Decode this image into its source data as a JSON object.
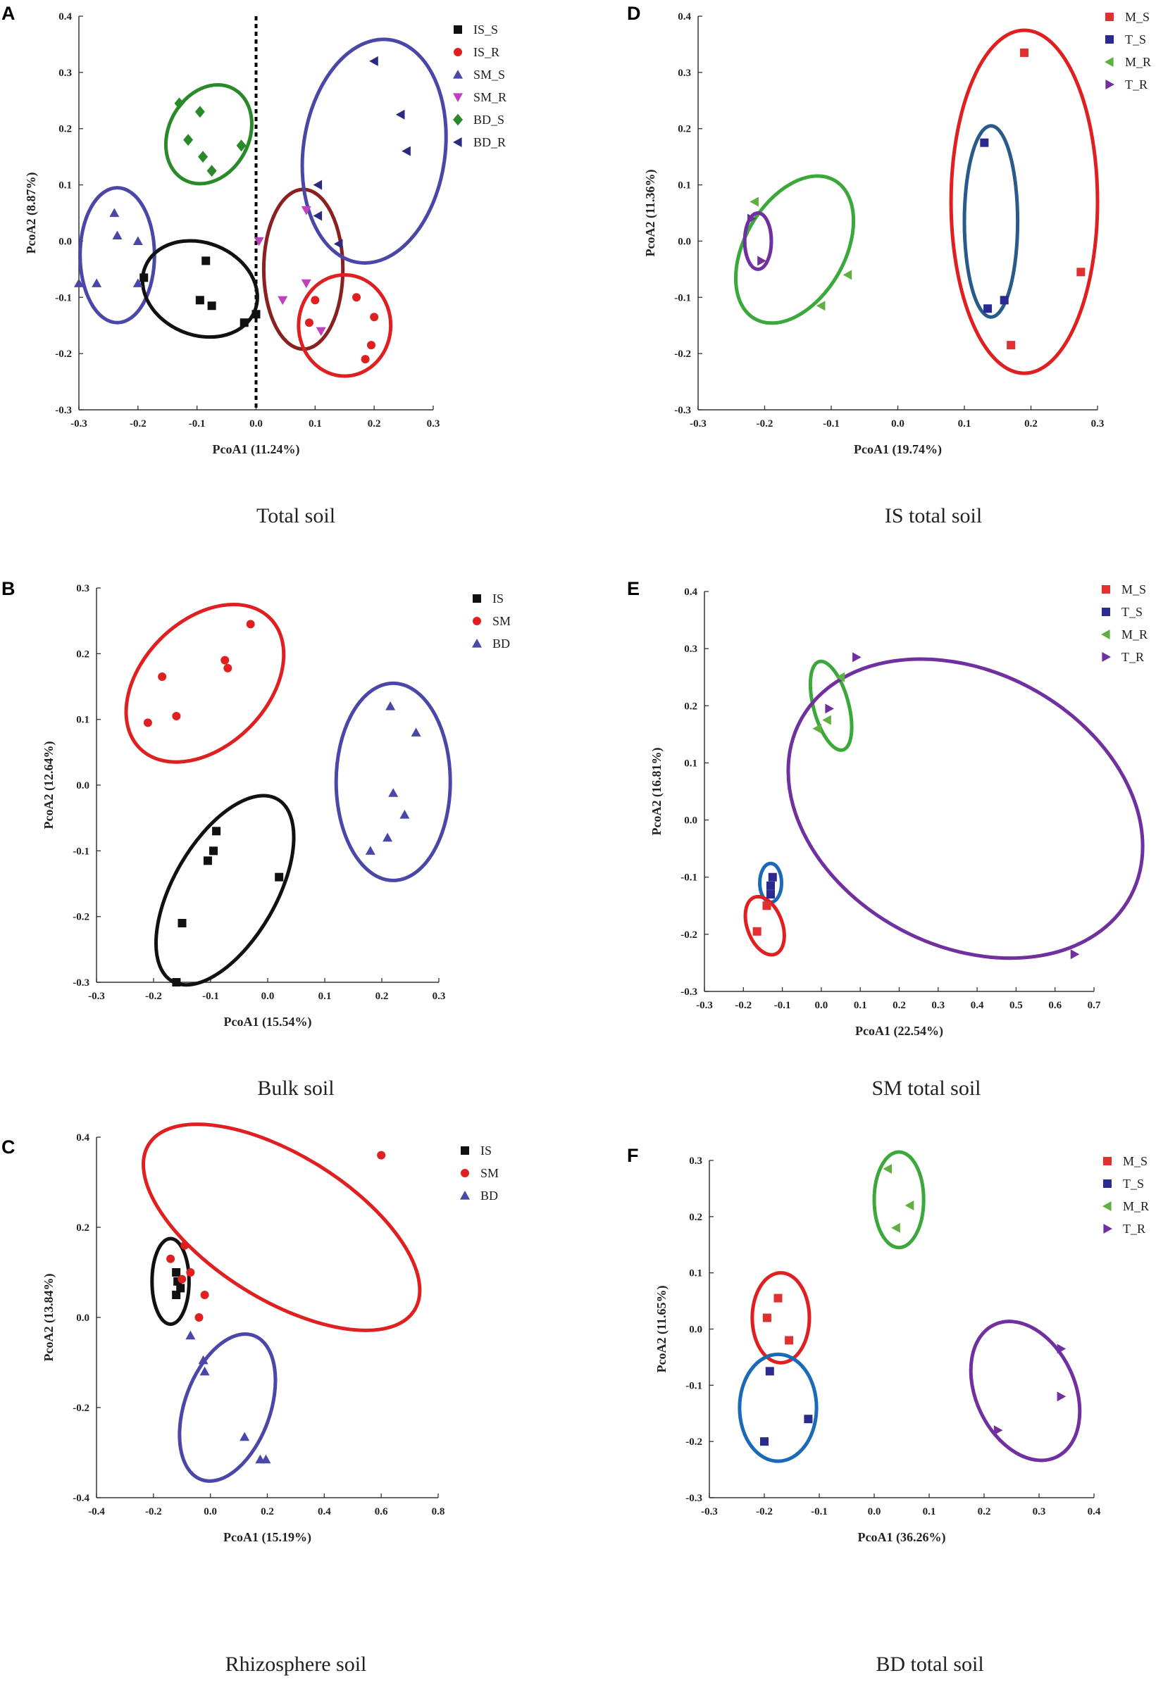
{
  "colors": {
    "IS_S": "#111111",
    "IS_R": "#e02020",
    "SM_S": "#4a47a8",
    "SM_R": "#c040c0",
    "BD_S": "#2a8a2a",
    "BD_R": "#2a2a80",
    "IS": "#111111",
    "SM": "#e02020",
    "BD": "#4a47a8",
    "M_S": "#e03030",
    "T_S": "#2a2a90",
    "M_R": "#5fb041",
    "T_R": "#7030a0"
  },
  "chart_data": [
    {
      "id": "A",
      "letter": "A",
      "type": "scatter",
      "caption": "Total soil",
      "xlabel": "PcoA1 (11.24%)",
      "ylabel": "PcoA2 (8.87%)",
      "xlim": [
        -0.3,
        0.3
      ],
      "ylim": [
        -0.3,
        0.4
      ],
      "xticks": [
        -0.3,
        -0.2,
        -0.1,
        0.0,
        0.1,
        0.2,
        0.3
      ],
      "yticks": [
        -0.3,
        -0.2,
        -0.1,
        0.0,
        0.1,
        0.2,
        0.3,
        0.4
      ],
      "ref_line_x": 0.0,
      "series": [
        {
          "name": "IS_S",
          "color": "IS_S",
          "marker": "square",
          "points": [
            [
              -0.19,
              -0.065
            ],
            [
              -0.085,
              -0.035
            ],
            [
              -0.095,
              -0.105
            ],
            [
              -0.075,
              -0.115
            ],
            [
              -0.02,
              -0.145
            ],
            [
              0.0,
              -0.13
            ]
          ]
        },
        {
          "name": "IS_R",
          "color": "IS_R",
          "marker": "circle",
          "points": [
            [
              0.1,
              -0.105
            ],
            [
              0.09,
              -0.145
            ],
            [
              0.17,
              -0.1
            ],
            [
              0.2,
              -0.135
            ],
            [
              0.195,
              -0.185
            ],
            [
              0.185,
              -0.21
            ]
          ]
        },
        {
          "name": "SM_S",
          "color": "SM_S",
          "marker": "triangle-up",
          "points": [
            [
              -0.24,
              0.05
            ],
            [
              -0.235,
              0.01
            ],
            [
              -0.2,
              0.0
            ],
            [
              -0.3,
              -0.075
            ],
            [
              -0.27,
              -0.075
            ],
            [
              -0.2,
              -0.075
            ]
          ]
        },
        {
          "name": "SM_R",
          "color": "SM_R",
          "marker": "triangle-down",
          "points": [
            [
              0.005,
              0.0
            ],
            [
              0.085,
              0.055
            ],
            [
              0.045,
              -0.105
            ],
            [
              0.085,
              -0.075
            ],
            [
              0.11,
              -0.16
            ]
          ]
        },
        {
          "name": "BD_S",
          "color": "BD_S",
          "marker": "diamond",
          "points": [
            [
              -0.13,
              0.245
            ],
            [
              -0.095,
              0.23
            ],
            [
              -0.115,
              0.18
            ],
            [
              -0.09,
              0.15
            ],
            [
              -0.025,
              0.17
            ],
            [
              -0.075,
              0.125
            ]
          ]
        },
        {
          "name": "BD_R",
          "color": "BD_R",
          "marker": "triangle-left",
          "points": [
            [
              0.2,
              0.32
            ],
            [
              0.245,
              0.225
            ],
            [
              0.255,
              0.16
            ],
            [
              0.105,
              0.1
            ],
            [
              0.105,
              0.045
            ],
            [
              0.14,
              -0.005
            ]
          ]
        }
      ],
      "ellipses": [
        {
          "cx": -0.235,
          "cy": -0.025,
          "rx": 0.063,
          "ry": 0.12,
          "rot": 0,
          "color": "#4a47a8"
        },
        {
          "cx": -0.095,
          "cy": -0.085,
          "rx": 0.1,
          "ry": 0.082,
          "rot": -22,
          "color": "#111111"
        },
        {
          "cx": -0.08,
          "cy": 0.19,
          "rx": 0.068,
          "ry": 0.092,
          "rot": -28,
          "color": "#2a8a2a"
        },
        {
          "cx": 0.08,
          "cy": -0.05,
          "rx": 0.067,
          "ry": 0.142,
          "rot": 0,
          "color": "#8b2020"
        },
        {
          "cx": 0.15,
          "cy": -0.15,
          "rx": 0.078,
          "ry": 0.09,
          "rot": 0,
          "color": "#e02020"
        },
        {
          "cx": 0.2,
          "cy": 0.16,
          "rx": 0.12,
          "ry": 0.2,
          "rot": -8,
          "color": "#4a47a8"
        }
      ]
    },
    {
      "id": "D",
      "letter": "D",
      "type": "scatter",
      "caption": "IS total soil",
      "xlabel": "PcoA1 (19.74%)",
      "ylabel": "PcoA2 (11.36%)",
      "xlim": [
        -0.3,
        0.3
      ],
      "ylim": [
        -0.3,
        0.4
      ],
      "xticks": [
        -0.3,
        -0.2,
        -0.1,
        0.0,
        0.1,
        0.2,
        0.3
      ],
      "yticks": [
        -0.3,
        -0.2,
        -0.1,
        0.0,
        0.1,
        0.2,
        0.3,
        0.4
      ],
      "series": [
        {
          "name": "M_S",
          "color": "M_S",
          "marker": "square",
          "points": [
            [
              0.19,
              0.335
            ],
            [
              0.275,
              -0.055
            ],
            [
              0.17,
              -0.185
            ]
          ]
        },
        {
          "name": "T_S",
          "color": "T_S",
          "marker": "square",
          "points": [
            [
              0.13,
              0.175
            ],
            [
              0.16,
              -0.105
            ],
            [
              0.135,
              -0.12
            ]
          ]
        },
        {
          "name": "M_R",
          "color": "M_R",
          "marker": "triangle-left",
          "points": [
            [
              -0.215,
              0.07
            ],
            [
              -0.075,
              -0.06
            ],
            [
              -0.115,
              -0.115
            ]
          ]
        },
        {
          "name": "T_R",
          "color": "T_R",
          "marker": "triangle-right",
          "points": [
            [
              -0.22,
              0.04
            ],
            [
              -0.205,
              -0.035
            ]
          ]
        }
      ],
      "ellipses": [
        {
          "cx": -0.155,
          "cy": -0.015,
          "rx": 0.075,
          "ry": 0.142,
          "rot": -30,
          "color": "#3aa83a"
        },
        {
          "cx": -0.21,
          "cy": 0.0,
          "rx": 0.02,
          "ry": 0.05,
          "rot": 0,
          "color": "#7030a0"
        },
        {
          "cx": 0.14,
          "cy": 0.035,
          "rx": 0.04,
          "ry": 0.17,
          "rot": 0,
          "color": "#2a5a8a"
        },
        {
          "cx": 0.19,
          "cy": 0.07,
          "rx": 0.11,
          "ry": 0.305,
          "rot": 0,
          "color": "#e02020"
        }
      ]
    },
    {
      "id": "B",
      "letter": "B",
      "type": "scatter",
      "caption": "Bulk soil",
      "xlabel": "PcoA1 (15.54%)",
      "ylabel": "PcoA2 (12.64%)",
      "xlim": [
        -0.3,
        0.3
      ],
      "ylim": [
        -0.3,
        0.3
      ],
      "xticks": [
        -0.3,
        -0.2,
        -0.1,
        0.0,
        0.1,
        0.2,
        0.3
      ],
      "yticks": [
        -0.3,
        -0.2,
        -0.1,
        0.0,
        0.1,
        0.2,
        0.3
      ],
      "series": [
        {
          "name": "IS",
          "color": "IS",
          "marker": "square",
          "points": [
            [
              -0.09,
              -0.07
            ],
            [
              -0.095,
              -0.1
            ],
            [
              -0.105,
              -0.115
            ],
            [
              0.02,
              -0.14
            ],
            [
              -0.15,
              -0.21
            ],
            [
              -0.16,
              -0.3
            ]
          ]
        },
        {
          "name": "SM",
          "color": "SM",
          "marker": "circle",
          "points": [
            [
              -0.03,
              0.245
            ],
            [
              -0.075,
              0.19
            ],
            [
              -0.07,
              0.178
            ],
            [
              -0.185,
              0.165
            ],
            [
              -0.16,
              0.105
            ],
            [
              -0.21,
              0.095
            ]
          ]
        },
        {
          "name": "BD",
          "color": "BD",
          "marker": "triangle-up",
          "points": [
            [
              0.215,
              0.12
            ],
            [
              0.26,
              0.08
            ],
            [
              0.22,
              -0.012
            ],
            [
              0.24,
              -0.045
            ],
            [
              0.21,
              -0.08
            ],
            [
              0.18,
              -0.1
            ]
          ]
        }
      ],
      "ellipses": [
        {
          "cx": -0.11,
          "cy": 0.155,
          "rx": 0.11,
          "ry": 0.14,
          "rot": -45,
          "color": "#e02020"
        },
        {
          "cx": -0.075,
          "cy": -0.16,
          "rx": 0.09,
          "ry": 0.16,
          "rot": -30,
          "color": "#111111"
        },
        {
          "cx": 0.22,
          "cy": 0.005,
          "rx": 0.1,
          "ry": 0.15,
          "rot": 0,
          "color": "#4a47a8"
        }
      ]
    },
    {
      "id": "E",
      "letter": "E",
      "type": "scatter",
      "caption": "SM total soil",
      "xlabel": "PcoA1 (22.54%)",
      "ylabel": "PcoA2 (16.81%)",
      "xlim": [
        -0.3,
        0.7
      ],
      "ylim": [
        -0.3,
        0.4
      ],
      "xticks": [
        -0.3,
        -0.2,
        -0.1,
        0.0,
        0.1,
        0.2,
        0.3,
        0.4,
        0.5,
        0.6,
        0.7
      ],
      "yticks": [
        -0.3,
        -0.2,
        -0.1,
        0.0,
        0.1,
        0.2,
        0.3,
        0.4
      ],
      "series": [
        {
          "name": "M_S",
          "color": "M_S",
          "marker": "square",
          "points": [
            [
              -0.14,
              -0.15
            ],
            [
              -0.165,
              -0.195
            ]
          ]
        },
        {
          "name": "T_S",
          "color": "T_S",
          "marker": "square",
          "points": [
            [
              -0.125,
              -0.1
            ],
            [
              -0.13,
              -0.115
            ],
            [
              -0.13,
              -0.13
            ]
          ]
        },
        {
          "name": "M_R",
          "color": "M_R",
          "marker": "triangle-left",
          "points": [
            [
              0.05,
              0.25
            ],
            [
              -0.01,
              0.16
            ],
            [
              0.015,
              0.175
            ]
          ]
        },
        {
          "name": "T_R",
          "color": "T_R",
          "marker": "triangle-right",
          "points": [
            [
              0.09,
              0.285
            ],
            [
              0.02,
              0.195
            ],
            [
              0.65,
              -0.235
            ]
          ]
        }
      ],
      "ellipses": [
        {
          "cx": -0.13,
          "cy": -0.11,
          "rx": 0.028,
          "ry": 0.034,
          "rot": 0,
          "color": "#1a6ab8"
        },
        {
          "cx": -0.145,
          "cy": -0.185,
          "rx": 0.045,
          "ry": 0.053,
          "rot": 20,
          "color": "#e02020"
        },
        {
          "cx": 0.025,
          "cy": 0.2,
          "rx": 0.045,
          "ry": 0.08,
          "rot": 15,
          "color": "#3aa83a"
        },
        {
          "cx": 0.37,
          "cy": 0.02,
          "rx": 0.48,
          "ry": 0.24,
          "rot": -28,
          "color": "#7030a0"
        }
      ]
    },
    {
      "id": "C",
      "letter": "C",
      "type": "scatter",
      "caption": "Rhizosphere soil",
      "xlabel": "PcoA1 (15.19%)",
      "ylabel": "PcoA2 (13.84%)",
      "xlim": [
        -0.4,
        0.8
      ],
      "ylim": [
        -0.4,
        0.4
      ],
      "xticks": [
        -0.4,
        -0.2,
        0.0,
        0.2,
        0.4,
        0.6,
        0.8
      ],
      "yticks": [
        -0.4,
        -0.2,
        0.0,
        0.2,
        0.4
      ],
      "series": [
        {
          "name": "IS",
          "color": "IS",
          "marker": "square",
          "points": [
            [
              -0.12,
              0.1
            ],
            [
              -0.115,
              0.08
            ],
            [
              -0.105,
              0.065
            ],
            [
              -0.12,
              0.05
            ]
          ]
        },
        {
          "name": "SM",
          "color": "SM",
          "marker": "circle",
          "points": [
            [
              0.6,
              0.36
            ],
            [
              -0.09,
              0.16
            ],
            [
              -0.14,
              0.13
            ],
            [
              -0.07,
              0.1
            ],
            [
              -0.1,
              0.085
            ],
            [
              -0.02,
              0.05
            ],
            [
              -0.04,
              0.0
            ]
          ]
        },
        {
          "name": "BD",
          "color": "BD",
          "marker": "triangle-up",
          "points": [
            [
              -0.025,
              -0.095
            ],
            [
              -0.02,
              -0.12
            ],
            [
              0.12,
              -0.265
            ],
            [
              0.175,
              -0.315
            ],
            [
              0.195,
              -0.315
            ],
            [
              -0.07,
              -0.04
            ]
          ]
        }
      ],
      "ellipses": [
        {
          "cx": -0.14,
          "cy": 0.08,
          "rx": 0.065,
          "ry": 0.095,
          "rot": 0,
          "color": "#111111"
        },
        {
          "cx": 0.25,
          "cy": 0.2,
          "rx": 0.55,
          "ry": 0.16,
          "rot": -32,
          "color": "#e02020"
        },
        {
          "cx": 0.06,
          "cy": -0.2,
          "rx": 0.15,
          "ry": 0.17,
          "rot": -20,
          "color": "#4a47a8"
        }
      ]
    },
    {
      "id": "F",
      "letter": "F",
      "type": "scatter",
      "caption": "BD total soil",
      "xlabel": "PcoA1 (36.26%)",
      "ylabel": "PcoA2 (11.65%)",
      "xlim": [
        -0.3,
        0.4
      ],
      "ylim": [
        -0.3,
        0.3
      ],
      "xticks": [
        -0.3,
        -0.2,
        -0.1,
        0.0,
        0.1,
        0.2,
        0.3,
        0.4
      ],
      "yticks": [
        -0.3,
        -0.2,
        -0.1,
        0.0,
        0.1,
        0.2,
        0.3
      ],
      "series": [
        {
          "name": "M_S",
          "color": "M_S",
          "marker": "square",
          "points": [
            [
              -0.175,
              0.055
            ],
            [
              -0.195,
              0.02
            ],
            [
              -0.155,
              -0.02
            ]
          ]
        },
        {
          "name": "T_S",
          "color": "T_S",
          "marker": "square",
          "points": [
            [
              -0.19,
              -0.075
            ],
            [
              -0.12,
              -0.16
            ],
            [
              -0.2,
              -0.2
            ]
          ]
        },
        {
          "name": "M_R",
          "color": "M_R",
          "marker": "triangle-left",
          "points": [
            [
              0.025,
              0.285
            ],
            [
              0.065,
              0.22
            ],
            [
              0.04,
              0.18
            ]
          ]
        },
        {
          "name": "T_R",
          "color": "T_R",
          "marker": "triangle-right",
          "points": [
            [
              0.34,
              -0.035
            ],
            [
              0.34,
              -0.12
            ],
            [
              0.225,
              -0.18
            ]
          ]
        }
      ],
      "ellipses": [
        {
          "cx": 0.045,
          "cy": 0.23,
          "rx": 0.045,
          "ry": 0.085,
          "rot": 0,
          "color": "#3aa83a"
        },
        {
          "cx": -0.17,
          "cy": 0.02,
          "rx": 0.052,
          "ry": 0.08,
          "rot": 0,
          "color": "#e02020"
        },
        {
          "cx": -0.175,
          "cy": -0.14,
          "rx": 0.07,
          "ry": 0.095,
          "rot": 0,
          "color": "#1a6ab8"
        },
        {
          "cx": 0.275,
          "cy": -0.11,
          "rx": 0.09,
          "ry": 0.13,
          "rot": 25,
          "color": "#7030a0"
        }
      ]
    }
  ]
}
